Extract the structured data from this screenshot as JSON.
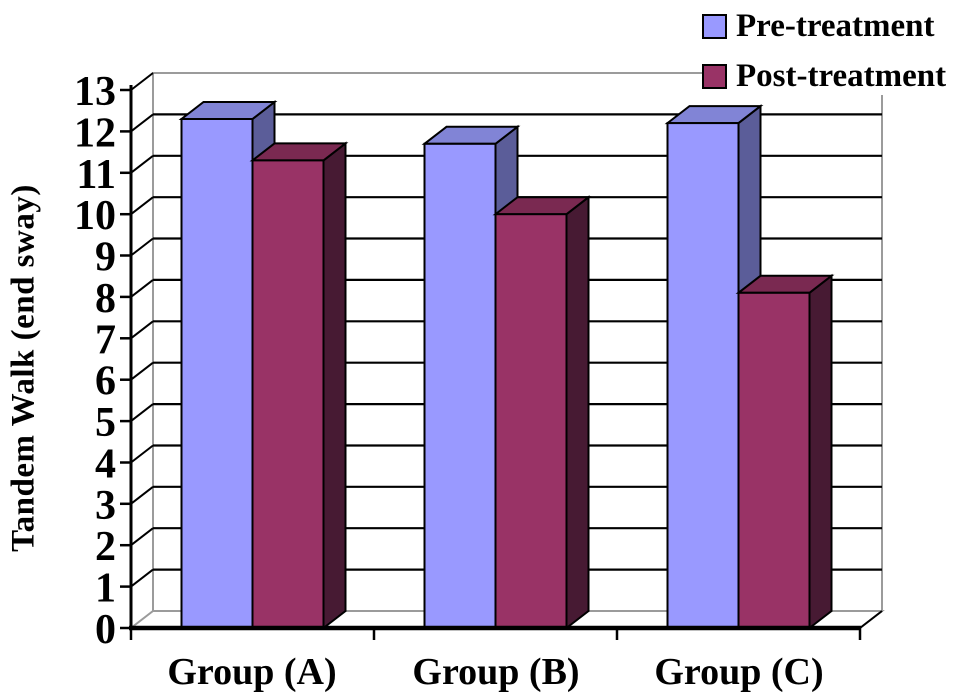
{
  "chart_data": {
    "type": "bar",
    "style": "3d-column",
    "title": "",
    "xlabel": "",
    "ylabel": "Tandem Walk (end sway)",
    "categories": [
      "Group (A)",
      "Group (B)",
      "Group (C)"
    ],
    "series": [
      {
        "name": "Pre-treatment",
        "values": [
          12.3,
          11.7,
          12.2
        ],
        "color": "#9999FF",
        "color_top": "#8184D6",
        "color_side": "#5B5D99"
      },
      {
        "name": "Post-treatment",
        "values": [
          11.3,
          10.0,
          8.1
        ],
        "color": "#993366",
        "color_top": "#7A2951",
        "color_side": "#471A33"
      }
    ],
    "ylim": [
      0,
      13
    ],
    "ytick_step": 1,
    "yticks": [
      0,
      1,
      2,
      3,
      4,
      5,
      6,
      7,
      8,
      9,
      10,
      11,
      12,
      13
    ],
    "grid": true,
    "legend_position": "top-right",
    "axis_color": "#000000",
    "wall_edge_color": "#9B9B9B",
    "background": "#FFFFFF"
  }
}
